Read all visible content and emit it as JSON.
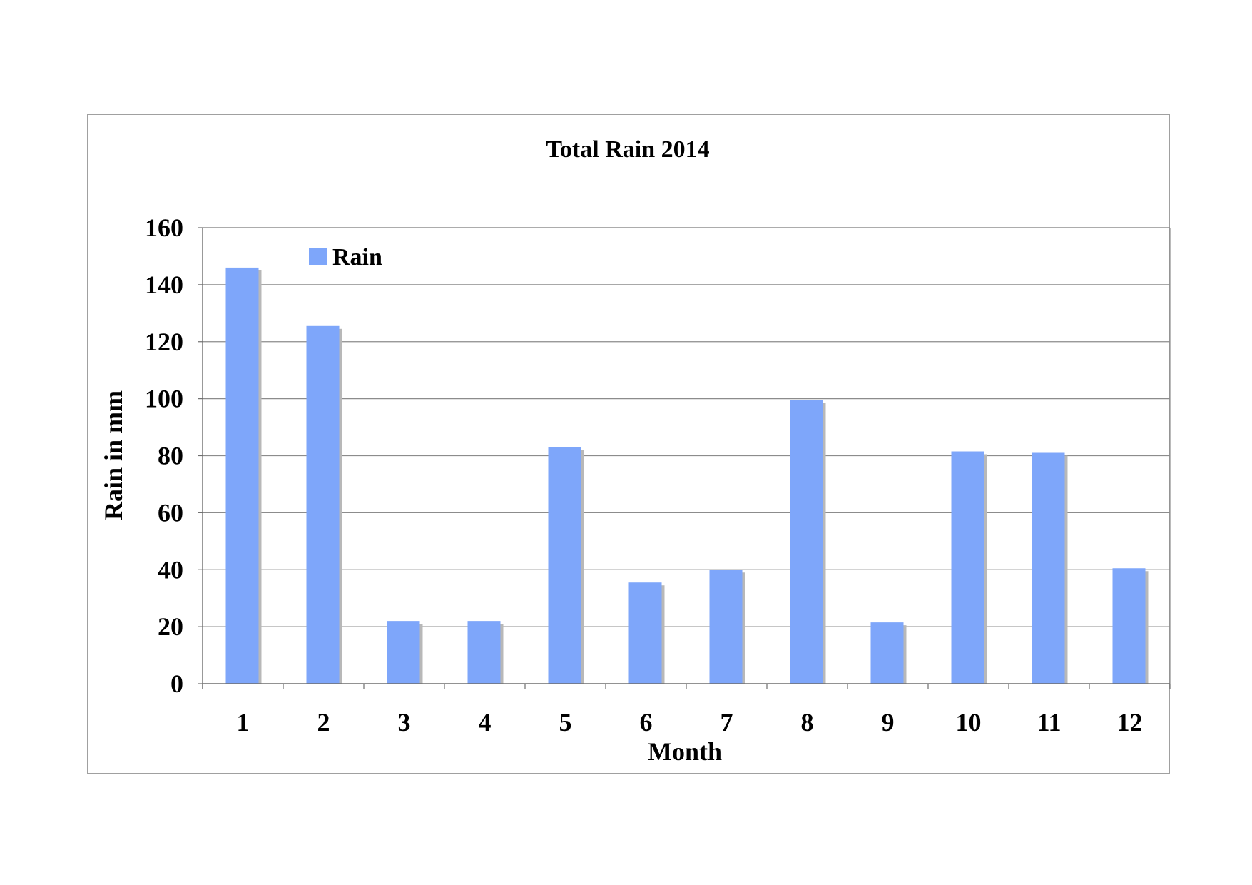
{
  "chart_data": {
    "type": "bar",
    "title": "Total Rain 2014",
    "xlabel": "Month",
    "ylabel": "Rain in mm",
    "categories": [
      "1",
      "2",
      "3",
      "4",
      "5",
      "6",
      "7",
      "8",
      "9",
      "10",
      "11",
      "12"
    ],
    "series": [
      {
        "name": "Rain",
        "values": [
          146,
          125.5,
          22,
          22,
          83,
          35.5,
          40,
          99.5,
          21.5,
          81.5,
          81,
          40.5
        ],
        "color": "#7ea6fa"
      }
    ],
    "ylim": [
      0,
      160
    ],
    "yticks": [
      0,
      20,
      40,
      60,
      80,
      100,
      120,
      140,
      160
    ],
    "grid": true,
    "legend_position": "top-left"
  }
}
